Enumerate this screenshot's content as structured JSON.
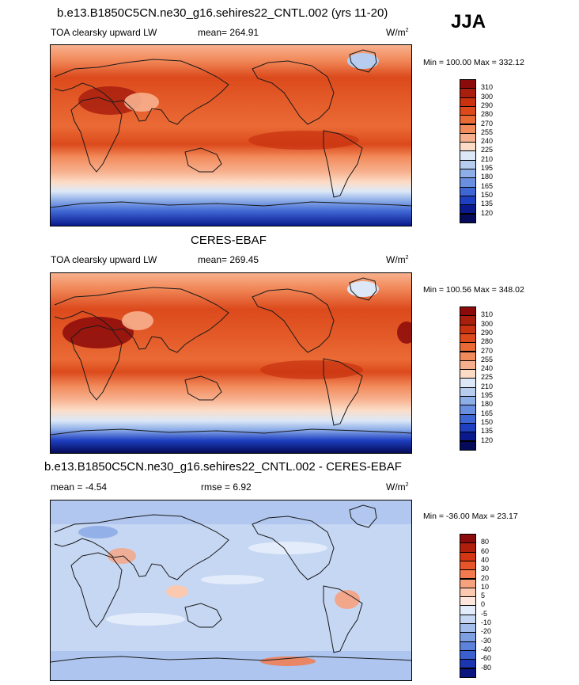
{
  "season": "JJA",
  "panels": [
    {
      "title": "b.e13.B1850C5CN.ne30_g16.sehires22_CNTL.002 (yrs 11-20)",
      "left_label": "TOA clearsky upward LW",
      "mean_text": "mean= 264.91",
      "units": "W/m",
      "units_sup": "2",
      "minmax": "Min = 100.00 Max = 332.12",
      "colorbar_levels": [
        "310",
        "300",
        "290",
        "280",
        "270",
        "255",
        "240",
        "225",
        "210",
        "195",
        "180",
        "165",
        "150",
        "135",
        "120"
      ]
    },
    {
      "title": "CERES-EBAF",
      "left_label": "TOA clearsky upward LW",
      "mean_text": "mean= 269.45",
      "units": "W/m",
      "units_sup": "2",
      "minmax": "Min = 100.56 Max = 348.02",
      "colorbar_levels": [
        "310",
        "300",
        "290",
        "280",
        "270",
        "255",
        "240",
        "225",
        "210",
        "195",
        "180",
        "165",
        "150",
        "135",
        "120"
      ]
    },
    {
      "title": "b.e13.B1850C5CN.ne30_g16.sehires22_CNTL.002 - CERES-EBAF",
      "left_label": "mean =  -4.54",
      "mean_text": "rmse =   6.92",
      "units": "W/m",
      "units_sup": "2",
      "minmax": "Min = -36.00 Max =  23.17",
      "colorbar_levels": [
        "80",
        "60",
        "40",
        "30",
        "20",
        "10",
        "5",
        "0",
        "-5",
        "-10",
        "-20",
        "-30",
        "-40",
        "-60",
        "-80"
      ]
    }
  ],
  "colors": {
    "abs_scale": [
      "#8b0a0a",
      "#a81f0e",
      "#c8320f",
      "#dc4a1c",
      "#ea6a35",
      "#f28b5c",
      "#f7b08e",
      "#fcdcc6",
      "#dce8f7",
      "#b7cdf0",
      "#8eaee8",
      "#6a8fe0",
      "#3f67d4",
      "#1e3fc0",
      "#0a1a8c",
      "#050b58"
    ],
    "diff_scale": [
      "#8b0a0a",
      "#b01e0c",
      "#d43512",
      "#e9552a",
      "#f27a4e",
      "#f7a27e",
      "#fbc9b0",
      "#fde7dc",
      "#e3ecfa",
      "#c6d7f3",
      "#a3bdec",
      "#7f9fe3",
      "#5c82db",
      "#3b5fce",
      "#1c35b0",
      "#0a1580"
    ],
    "coast": "#1a1a1a"
  }
}
